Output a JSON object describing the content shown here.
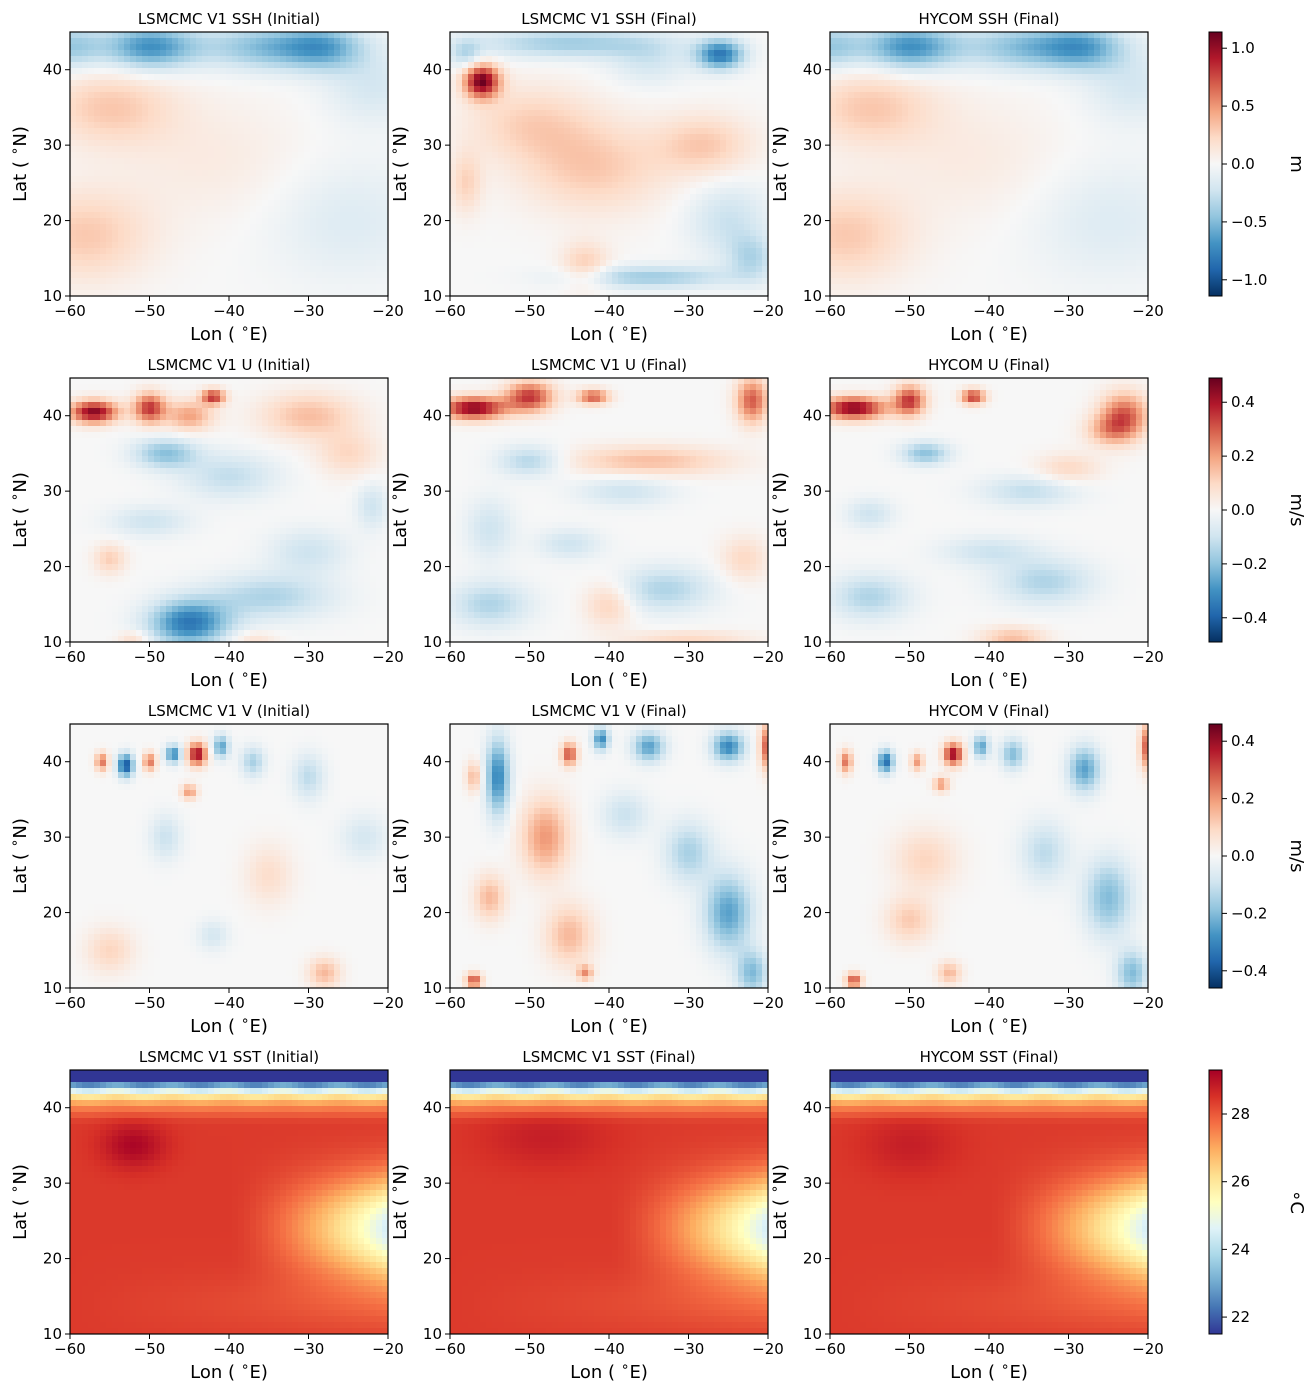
{
  "figure": {
    "rows": [
      {
        "colorbar": {
          "label": "m",
          "ticks": [
            1.0,
            0.5,
            0.0,
            -0.5,
            -1.0
          ],
          "tick_labels": [
            "1.0",
            "0.5",
            "0.0",
            "−0.5",
            "−1.0"
          ],
          "range": [
            -1.14,
            1.14
          ],
          "cmap": "RdBu_r"
        }
      },
      {
        "colorbar": {
          "label": "m/s",
          "ticks": [
            0.4,
            0.2,
            0.0,
            -0.2,
            -0.4
          ],
          "tick_labels": [
            "0.4",
            "0.2",
            "0.0",
            "−0.2",
            "−0.4"
          ],
          "range": [
            -0.49,
            0.49
          ],
          "cmap": "RdBu_r"
        }
      },
      {
        "colorbar": {
          "label": "m/s",
          "ticks": [
            0.4,
            0.2,
            0.0,
            -0.2,
            -0.4
          ],
          "tick_labels": [
            "0.4",
            "0.2",
            "0.0",
            "−0.2",
            "−0.4"
          ],
          "range": [
            -0.46,
            0.46
          ],
          "cmap": "RdBu_r"
        }
      },
      {
        "colorbar": {
          "label": "∘C",
          "ticks": [
            28,
            26,
            24,
            22
          ],
          "tick_labels": [
            "28",
            "26",
            "24",
            "22"
          ],
          "range": [
            21.5,
            29.3
          ],
          "cmap": "RdYlBu_r"
        }
      }
    ]
  },
  "chart_data": [
    {
      "type": "heatmap",
      "title": "LSMCMC V1 SSH (Initial)",
      "xlabel": "Lon ($^\\circ$E)",
      "ylabel": "Lat ($^\\circ$N)",
      "xlim": [
        -60,
        -20
      ],
      "ylim": [
        10,
        45
      ],
      "xticks": [
        -60,
        -50,
        -40,
        -30,
        -20
      ],
      "yticks": [
        10,
        20,
        30,
        40
      ],
      "field": "SSH",
      "units": "m",
      "anomalies": [
        [
          -50,
          43,
          -0.7,
          6,
          3
        ],
        [
          -35,
          43,
          -0.5,
          8,
          3
        ],
        [
          -60,
          43,
          -0.4,
          4,
          3
        ],
        [
          -55,
          35,
          0.3,
          8,
          5
        ],
        [
          -58,
          18,
          0.3,
          8,
          6
        ],
        [
          -42,
          28,
          0.1,
          12,
          8
        ],
        [
          -25,
          20,
          -0.15,
          10,
          8
        ],
        [
          -22,
          38,
          -0.2,
          6,
          5
        ],
        [
          -28,
          43,
          -0.45,
          5,
          3
        ]
      ]
    },
    {
      "type": "heatmap",
      "title": "LSMCMC V1 SSH (Final)",
      "xlabel": "Lon ($^\\circ$E)",
      "ylabel": "Lat ($^\\circ$N)",
      "xlim": [
        -60,
        -20
      ],
      "ylim": [
        10,
        45
      ],
      "xticks": [
        -60,
        -50,
        -40,
        -30,
        -20
      ],
      "yticks": [
        10,
        20,
        30,
        40
      ],
      "field": "SSH",
      "units": "m",
      "anomalies": [
        [
          -56,
          38.5,
          1.1,
          2.2,
          2.2
        ],
        [
          -42,
          27,
          0.3,
          9,
          6
        ],
        [
          -28,
          30,
          0.3,
          6,
          4
        ],
        [
          -50,
          33,
          0.25,
          8,
          5
        ],
        [
          -58,
          25,
          0.25,
          2,
          4
        ],
        [
          -43,
          14,
          0.3,
          3,
          3
        ],
        [
          -26,
          42,
          -0.8,
          3,
          2
        ],
        [
          -45,
          43.5,
          -0.4,
          12,
          2
        ],
        [
          -25,
          20,
          -0.25,
          5,
          5
        ],
        [
          -35,
          12.5,
          -0.4,
          10,
          1.5
        ],
        [
          -58,
          42,
          -0.3,
          2,
          2
        ],
        [
          -22,
          15,
          -0.3,
          3,
          3
        ],
        [
          -35,
          41,
          -0.2,
          5,
          3
        ]
      ]
    },
    {
      "type": "heatmap",
      "title": "HYCOM SSH (Final)",
      "xlabel": "Lon ($^\\circ$E)",
      "ylabel": "Lat ($^\\circ$N)",
      "xlim": [
        -60,
        -20
      ],
      "ylim": [
        10,
        45
      ],
      "xticks": [
        -60,
        -50,
        -40,
        -30,
        -20
      ],
      "yticks": [
        10,
        20,
        30,
        40
      ],
      "field": "SSH",
      "units": "m",
      "anomalies": [
        [
          -50,
          43,
          -0.7,
          6,
          3
        ],
        [
          -35,
          43,
          -0.5,
          8,
          3
        ],
        [
          -60,
          43,
          -0.4,
          4,
          3
        ],
        [
          -55,
          35,
          0.3,
          8,
          5
        ],
        [
          -58,
          18,
          0.3,
          8,
          6
        ],
        [
          -42,
          28,
          0.1,
          12,
          8
        ],
        [
          -25,
          20,
          -0.15,
          10,
          8
        ],
        [
          -22,
          38,
          -0.2,
          6,
          5
        ],
        [
          -28,
          43,
          -0.45,
          5,
          3
        ]
      ]
    },
    {
      "type": "heatmap",
      "title": "LSMCMC V1 U (Initial)",
      "xlabel": "Lon ($^\\circ$E)",
      "ylabel": "Lat ($^\\circ$N)",
      "xlim": [
        -60,
        -20
      ],
      "ylim": [
        10,
        45
      ],
      "xticks": [
        -60,
        -50,
        -40,
        -30,
        -20
      ],
      "yticks": [
        10,
        20,
        30,
        40
      ],
      "field": "U",
      "units": "m/s",
      "anomalies": [
        [
          -57,
          40.5,
          0.45,
          3,
          1.5
        ],
        [
          -50,
          41,
          0.35,
          2,
          2
        ],
        [
          -42,
          42.5,
          0.35,
          1.5,
          1
        ],
        [
          -45,
          40,
          0.2,
          3,
          2
        ],
        [
          -30,
          40,
          0.15,
          6,
          3
        ],
        [
          -48,
          35,
          -0.2,
          4,
          2
        ],
        [
          -40,
          32,
          -0.12,
          6,
          3
        ],
        [
          -45,
          12.5,
          -0.35,
          5,
          3
        ],
        [
          -35,
          16,
          -0.15,
          8,
          3
        ],
        [
          -55,
          21,
          0.12,
          2,
          2
        ],
        [
          -50,
          26,
          -0.1,
          5,
          2
        ],
        [
          -30,
          22,
          -0.1,
          5,
          3
        ],
        [
          -22,
          28,
          -0.1,
          2,
          3
        ],
        [
          -25,
          35,
          0.1,
          4,
          3
        ],
        [
          -52,
          10.5,
          0.1,
          2,
          1
        ],
        [
          -37,
          10.5,
          0.08,
          3,
          1
        ]
      ]
    },
    {
      "type": "heatmap",
      "title": "LSMCMC V1 U (Final)",
      "xlabel": "Lon ($^\\circ$E)",
      "ylabel": "Lat ($^\\circ$N)",
      "xlim": [
        -60,
        -20
      ],
      "ylim": [
        10,
        45
      ],
      "xticks": [
        -60,
        -50,
        -40,
        -30,
        -20
      ],
      "yticks": [
        10,
        20,
        30,
        40
      ],
      "field": "U",
      "units": "m/s",
      "anomalies": [
        [
          -57,
          41,
          0.45,
          4,
          1.5
        ],
        [
          -50,
          42.5,
          0.35,
          3,
          2
        ],
        [
          -42,
          42.5,
          0.3,
          2,
          1
        ],
        [
          -22,
          42,
          0.3,
          2,
          3
        ],
        [
          -35,
          34,
          0.15,
          10,
          2
        ],
        [
          -50,
          34,
          -0.15,
          4,
          2
        ],
        [
          -55,
          25,
          -0.1,
          3,
          4
        ],
        [
          -45,
          23,
          -0.1,
          4,
          2
        ],
        [
          -38,
          30,
          -0.1,
          6,
          2
        ],
        [
          -55,
          15,
          -0.15,
          5,
          3
        ],
        [
          -33,
          17,
          -0.15,
          6,
          3
        ],
        [
          -40,
          15,
          0.12,
          3,
          3
        ],
        [
          -30,
          10.5,
          0.1,
          8,
          1
        ],
        [
          -23,
          21,
          0.1,
          3,
          3
        ]
      ]
    },
    {
      "type": "heatmap",
      "title": "HYCOM U (Final)",
      "xlabel": "Lon ($^\\circ$E)",
      "ylabel": "Lat ($^\\circ$N)",
      "xlim": [
        -60,
        -20
      ],
      "ylim": [
        10,
        45
      ],
      "xticks": [
        -60,
        -50,
        -40,
        -30,
        -20
      ],
      "yticks": [
        10,
        20,
        30,
        40
      ],
      "field": "U",
      "units": "m/s",
      "anomalies": [
        [
          -57,
          41,
          0.45,
          4,
          1.5
        ],
        [
          -50,
          42,
          0.35,
          2,
          2
        ],
        [
          -42,
          42.5,
          0.35,
          1.5,
          1
        ],
        [
          -23,
          40,
          0.3,
          3,
          3
        ],
        [
          -48,
          35,
          -0.2,
          3,
          1.5
        ],
        [
          -35,
          30,
          -0.12,
          6,
          2
        ],
        [
          -55,
          16,
          -0.15,
          5,
          3
        ],
        [
          -33,
          18,
          -0.15,
          6,
          3
        ],
        [
          -40,
          22,
          -0.1,
          6,
          2
        ],
        [
          -55,
          27,
          -0.1,
          3,
          2
        ],
        [
          -37,
          10.5,
          0.15,
          4,
          1.5
        ],
        [
          -25,
          38,
          0.15,
          3,
          2
        ],
        [
          -30,
          33,
          0.1,
          4,
          2
        ]
      ]
    },
    {
      "type": "heatmap",
      "title": "LSMCMC V1 V (Initial)",
      "xlabel": "Lon ($^\\circ$E)",
      "ylabel": "Lat ($^\\circ$N)",
      "xlim": [
        -60,
        -20
      ],
      "ylim": [
        10,
        45
      ],
      "xticks": [
        -60,
        -50,
        -40,
        -30,
        -20
      ],
      "yticks": [
        10,
        20,
        30,
        40
      ],
      "field": "V",
      "units": "m/s",
      "anomalies": [
        [
          -44,
          41,
          0.4,
          1.2,
          1.5
        ],
        [
          -53,
          39.5,
          -0.4,
          1,
          1.5
        ],
        [
          -56,
          40,
          0.25,
          0.8,
          1.2
        ],
        [
          -50,
          40,
          0.25,
          0.8,
          1.2
        ],
        [
          -47,
          41,
          -0.3,
          1,
          1.2
        ],
        [
          -41,
          42,
          -0.25,
          1,
          1.5
        ],
        [
          -45,
          36,
          0.2,
          1,
          1
        ],
        [
          -37,
          40,
          -0.15,
          1.5,
          2
        ],
        [
          -30,
          38,
          -0.12,
          2,
          3
        ],
        [
          -48,
          30,
          -0.1,
          2,
          3
        ],
        [
          -35,
          25,
          0.08,
          3,
          4
        ],
        [
          -28,
          12,
          0.15,
          2,
          2
        ],
        [
          -55,
          15,
          0.1,
          3,
          3
        ],
        [
          -42,
          17,
          -0.08,
          2,
          2
        ],
        [
          -23,
          30,
          -0.08,
          3,
          3
        ]
      ]
    },
    {
      "type": "heatmap",
      "title": "LSMCMC V1 V (Final)",
      "xlabel": "Lon ($^\\circ$E)",
      "ylabel": "Lat ($^\\circ$N)",
      "xlim": [
        -60,
        -20
      ],
      "ylim": [
        10,
        45
      ],
      "xticks": [
        -60,
        -50,
        -40,
        -30,
        -20
      ],
      "yticks": [
        10,
        20,
        30,
        40
      ],
      "field": "V",
      "units": "m/s",
      "anomalies": [
        [
          -54,
          38,
          -0.3,
          1.5,
          5
        ],
        [
          -57,
          38,
          0.15,
          1,
          2
        ],
        [
          -45,
          41,
          0.3,
          1,
          1.5
        ],
        [
          -41,
          43,
          -0.3,
          1,
          1.5
        ],
        [
          -35,
          42,
          -0.25,
          2,
          2
        ],
        [
          -25,
          42,
          -0.3,
          2,
          2
        ],
        [
          -20,
          42,
          0.3,
          1,
          3
        ],
        [
          -48,
          30,
          0.2,
          3,
          5
        ],
        [
          -38,
          33,
          -0.1,
          3,
          3
        ],
        [
          -30,
          28,
          -0.15,
          3,
          4
        ],
        [
          -25,
          20,
          -0.25,
          3,
          5
        ],
        [
          -22,
          12,
          -0.2,
          2,
          3
        ],
        [
          -45,
          17,
          0.15,
          3,
          4
        ],
        [
          -57,
          11,
          0.3,
          1,
          1
        ],
        [
          -43,
          12,
          0.2,
          1,
          1
        ],
        [
          -55,
          22,
          0.15,
          2,
          3
        ]
      ]
    },
    {
      "type": "heatmap",
      "title": "HYCOM V (Final)",
      "xlabel": "Lon ($^\\circ$E)",
      "ylabel": "Lat ($^\\circ$N)",
      "xlim": [
        -60,
        -20
      ],
      "ylim": [
        10,
        45
      ],
      "xticks": [
        -60,
        -50,
        -40,
        -30,
        -20
      ],
      "yticks": [
        10,
        20,
        30,
        40
      ],
      "field": "V",
      "units": "m/s",
      "anomalies": [
        [
          -44.5,
          41,
          0.4,
          1.2,
          1.5
        ],
        [
          -53,
          40,
          -0.35,
          1,
          1.5
        ],
        [
          -58,
          40,
          0.25,
          0.8,
          1.5
        ],
        [
          -49,
          40,
          0.2,
          0.8,
          1.2
        ],
        [
          -46,
          37,
          0.2,
          1,
          1
        ],
        [
          -41,
          42,
          -0.25,
          1,
          1.5
        ],
        [
          -37,
          41,
          -0.2,
          1.5,
          2
        ],
        [
          -28,
          39,
          -0.25,
          2,
          3
        ],
        [
          -20,
          42,
          0.3,
          1,
          3
        ],
        [
          -48,
          27,
          0.1,
          4,
          4
        ],
        [
          -33,
          28,
          -0.12,
          3,
          4
        ],
        [
          -25,
          22,
          -0.2,
          3,
          5
        ],
        [
          -22,
          12,
          -0.2,
          2,
          3
        ],
        [
          -57,
          11,
          0.3,
          1,
          1
        ],
        [
          -45,
          12,
          0.15,
          1.5,
          1.5
        ],
        [
          -50,
          19,
          0.12,
          3,
          3
        ]
      ]
    },
    {
      "type": "heatmap",
      "title": "LSMCMC V1 SST (Initial)",
      "xlabel": "Lon ($^\\circ$E)",
      "ylabel": "Lat ($^\\circ$N)",
      "xlim": [
        -60,
        -20
      ],
      "ylim": [
        10,
        45
      ],
      "xticks": [
        -60,
        -50,
        -40,
        -30,
        -20
      ],
      "yticks": [
        10,
        20,
        30,
        40
      ],
      "field": "SST",
      "units": "∘C",
      "anomalies": [
        [
          -52,
          35,
          0.8,
          4,
          3
        ]
      ]
    },
    {
      "type": "heatmap",
      "title": "LSMCMC V1 SST (Final)",
      "xlabel": "Lon ($^\\circ$E)",
      "ylabel": "Lat ($^\\circ$N)",
      "xlim": [
        -60,
        -20
      ],
      "ylim": [
        10,
        45
      ],
      "xticks": [
        -60,
        -50,
        -40,
        -30,
        -20
      ],
      "yticks": [
        10,
        20,
        30,
        40
      ],
      "field": "SST",
      "units": "∘C",
      "anomalies": [
        [
          -48,
          36,
          0.4,
          8,
          4
        ]
      ]
    },
    {
      "type": "heatmap",
      "title": "HYCOM SST (Final)",
      "xlabel": "Lon ($^\\circ$E)",
      "ylabel": "Lat ($^\\circ$N)",
      "xlim": [
        -60,
        -20
      ],
      "ylim": [
        10,
        45
      ],
      "xticks": [
        -60,
        -50,
        -40,
        -30,
        -20
      ],
      "yticks": [
        10,
        20,
        30,
        40
      ],
      "field": "SST",
      "units": "∘C",
      "anomalies": [
        [
          -50,
          35,
          0.4,
          6,
          4
        ]
      ]
    }
  ]
}
